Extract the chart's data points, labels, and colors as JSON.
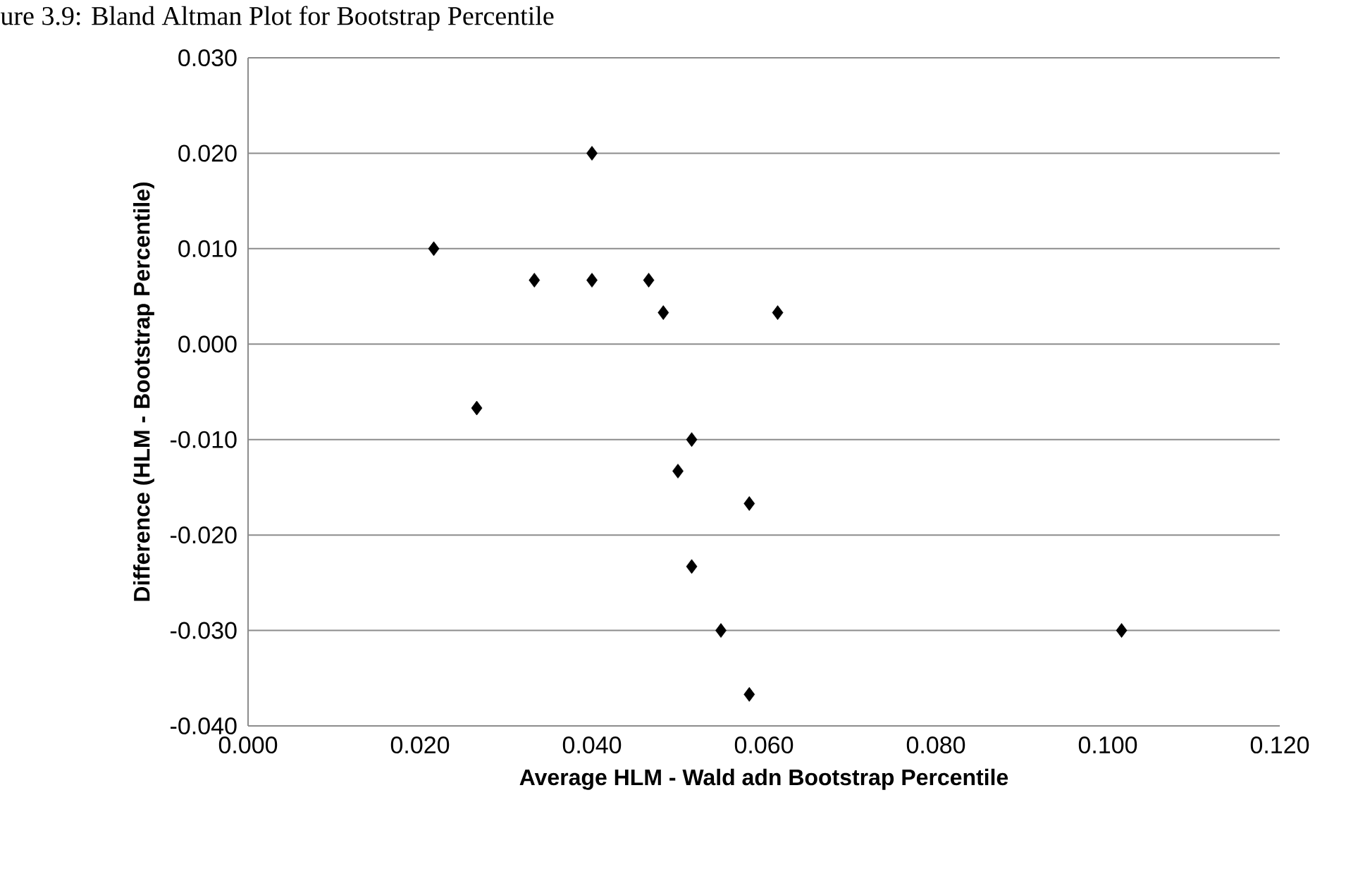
{
  "chart_data": {
    "type": "scatter",
    "title": "ure 3.9: Bland Altman Plot for Bootstrap Percentile",
    "xlabel": "Average HLM - Wald adn Bootstrap Percentile",
    "ylabel": "Difference (HLM - Bootstrap Percentile)",
    "x": [
      0.04,
      0.0216,
      0.0333,
      0.04,
      0.0466,
      0.0483,
      0.0616,
      0.0266,
      0.0516,
      0.05,
      0.0583,
      0.0516,
      0.055,
      0.0583,
      0.1016
    ],
    "values": [
      0.02,
      0.01,
      0.0067,
      0.0067,
      0.0067,
      0.0033,
      0.0033,
      -0.0067,
      -0.01,
      -0.0133,
      -0.0167,
      -0.0233,
      -0.03,
      -0.0367,
      -0.03
    ],
    "color": "#000000",
    "marker": "diamond",
    "grid": "y",
    "xlim": [
      0,
      0.12
    ],
    "xticks": [
      {
        "value": 0,
        "label": "0.000"
      },
      {
        "value": 0.02,
        "label": "0.020"
      },
      {
        "value": 0.04,
        "label": "0.040"
      },
      {
        "value": 0.06,
        "label": "0.060"
      },
      {
        "value": 0.08,
        "label": "0.080"
      },
      {
        "value": 0.1,
        "label": "0.100"
      },
      {
        "value": 0.12,
        "label": "0.120"
      }
    ],
    "ylim": [
      -0.04,
      0.03
    ],
    "yticks": [
      {
        "value": -0.04,
        "label": "-0.040"
      },
      {
        "value": -0.03,
        "label": "-0.030"
      },
      {
        "value": -0.02,
        "label": "-0.020"
      },
      {
        "value": -0.01,
        "label": "-0.010"
      },
      {
        "value": 0,
        "label": "0.000"
      },
      {
        "value": 0.01,
        "label": "0.010"
      },
      {
        "value": 0.02,
        "label": "0.020"
      },
      {
        "value": 0.03,
        "label": "0.030"
      }
    ]
  }
}
